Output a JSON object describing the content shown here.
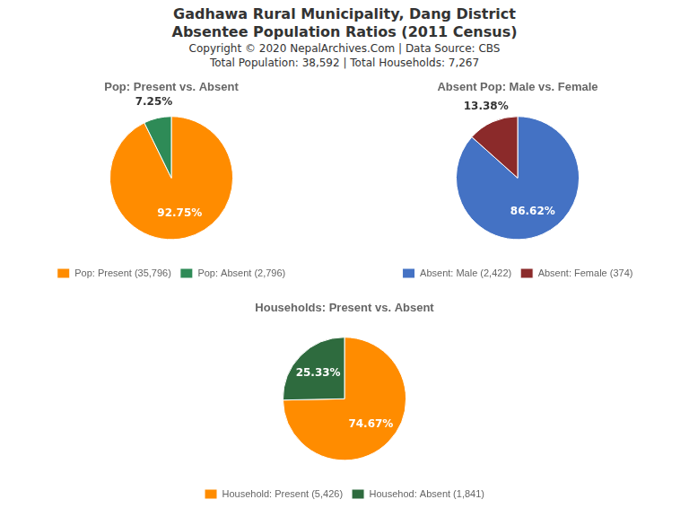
{
  "title": [
    "Gadhawa Rural Municipality, Dang District",
    "Absentee Population Ratios (2011 Census)"
  ],
  "subtitle": [
    "Copyright © 2020 NepalArchives.Com | Data Source: CBS",
    "Total Population: 38,592 | Total Households: 7,267"
  ],
  "chart_data": [
    {
      "type": "pie",
      "title": "Pop: Present vs. Absent",
      "categories": [
        "Pop: Present (35,796)",
        "Pop: Absent (2,796)"
      ],
      "values": [
        92.75,
        7.25
      ],
      "value_labels": [
        "92.75%",
        "7.25%"
      ],
      "colors": [
        "#FF8C00",
        "#2E8B57"
      ],
      "data_labels": true,
      "legend": "bottom"
    },
    {
      "type": "pie",
      "title": "Absent Pop: Male vs. Female",
      "categories": [
        "Absent: Male (2,422)",
        "Absent: Female (374)"
      ],
      "values": [
        86.62,
        13.38
      ],
      "value_labels": [
        "86.62%",
        "13.38%"
      ],
      "colors": [
        "#4472C4",
        "#8B2A2A"
      ],
      "data_labels": true,
      "legend": "bottom"
    },
    {
      "type": "pie",
      "title": "Households: Present vs. Absent",
      "categories": [
        "Household: Present (5,426)",
        "Househod: Absent (1,841)"
      ],
      "values": [
        74.67,
        25.33
      ],
      "value_labels": [
        "74.67%",
        "25.33%"
      ],
      "colors": [
        "#FF8C00",
        "#2E6B3E"
      ],
      "data_labels": true,
      "legend": "bottom"
    }
  ]
}
